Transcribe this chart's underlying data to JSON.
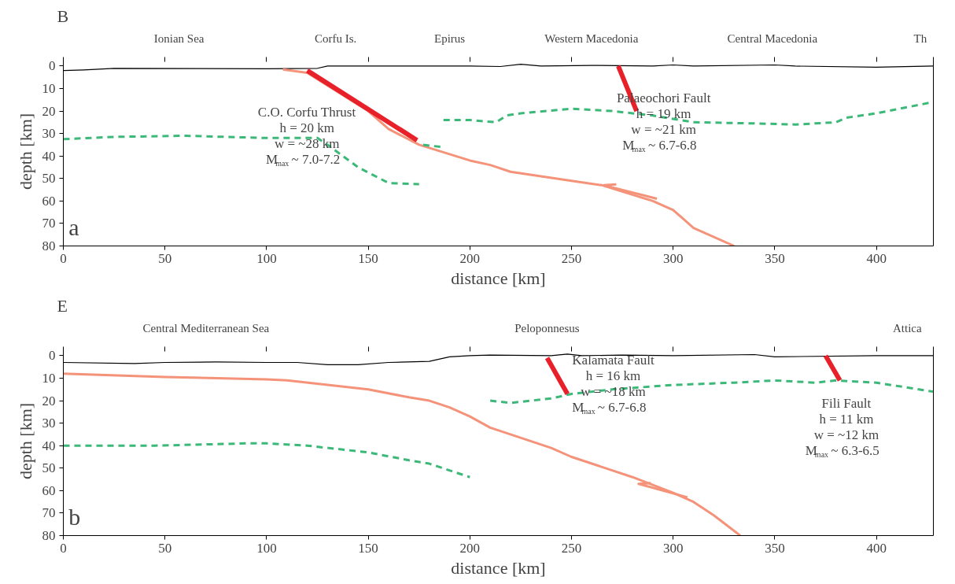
{
  "chart_data": [
    {
      "type": "line",
      "title": "B",
      "annotations": [
        "a",
        "Ionian Sea",
        "Corfu Is.",
        "Epirus",
        "Western Macedonia",
        "Central Macedonia",
        "Th",
        "C.O. Corfu Thrust\nh = 20 km\nw = ~28 km\nM$_{max}$ ~ 7.0-7.2",
        "Palaeochori Fault\nh = 19 km\nw = ~21 km\nM$_{max}$ ~ 6.7-6.8"
      ],
      "xlabel": "distance [km]",
      "ylabel": "depth [km]",
      "xlim": [
        0,
        428
      ],
      "ylim": [
        80,
        -4
      ],
      "xticks": [
        0,
        50,
        100,
        150,
        200,
        250,
        300,
        350,
        400
      ],
      "yticks": [
        0,
        10,
        20,
        30,
        40,
        50,
        60,
        70,
        80
      ],
      "grid": false,
      "series": [
        {
          "color": "#000000",
          "x": [
            0,
            10,
            25,
            100,
            125,
            130,
            200,
            215,
            225,
            235,
            260,
            290,
            300,
            310,
            350,
            360,
            400,
            428
          ],
          "values": [
            2,
            1.7,
            1,
            1.2,
            1,
            0,
            0,
            0.2,
            -0.8,
            0,
            -0.3,
            0,
            -0.5,
            0,
            -0.5,
            0,
            0.5,
            0
          ]
        },
        {
          "color": "#f4937a",
          "x": [
            108,
            120,
            150,
            160,
            175,
            200,
            210,
            220,
            250,
            265,
            290,
            300,
            305,
            310,
            330
          ],
          "values": [
            1.5,
            3,
            20,
            28,
            35,
            42,
            44,
            47,
            51,
            53,
            60,
            64,
            68,
            72,
            80
          ]
        },
        {
          "color": "#3cb878",
          "line_style": "dashed",
          "x": [
            0,
            25,
            60,
            100,
            125,
            130,
            145,
            160,
            175
          ],
          "values": [
            32.5,
            31.5,
            31,
            32,
            32,
            35,
            45,
            52,
            52.5
          ]
        },
        {
          "color": "#3cb878",
          "line_style": "dashed",
          "x": [
            177,
            186
          ],
          "values": [
            35,
            36
          ]
        },
        {
          "color": "#3cb878",
          "line_style": "dashed",
          "x": [
            187,
            200,
            213,
            218,
            225,
            250,
            270,
            290,
            310,
            340,
            360,
            380,
            385,
            400,
            428
          ],
          "values": [
            24,
            24,
            25,
            22,
            21,
            19,
            20,
            22,
            25,
            25.5,
            26,
            25,
            23,
            21,
            16
          ]
        },
        {
          "color": "#f4937a",
          "x": [
            292,
            266,
            272
          ],
          "values": [
            59,
            53,
            52.6
          ]
        },
        {
          "color": "#e8202a",
          "x": [
            120,
            174
          ],
          "values": [
            2,
            33
          ]
        },
        {
          "color": "#e8202a",
          "x": [
            273,
            282
          ],
          "values": [
            0,
            20
          ]
        }
      ]
    },
    {
      "type": "line",
      "title": "E",
      "annotations": [
        "b",
        "Central Mediterranean Sea",
        "Peloponnesus",
        "Attica",
        "Kalamata Fault\nh = 16 km\nw = ~18 km\nM$_{max}$ ~ 6.7-6.8",
        "Fili Fault\nh = 11 km\nw = ~12 km\nM$_{max}$ ~ 6.3-6.5"
      ],
      "xlabel": "distance [km]",
      "ylabel": "depth [km]",
      "xlim": [
        0,
        428
      ],
      "ylim": [
        80,
        -4
      ],
      "xticks": [
        0,
        50,
        100,
        150,
        200,
        250,
        300,
        350,
        400
      ],
      "yticks": [
        0,
        10,
        20,
        30,
        40,
        50,
        60,
        70,
        80
      ],
      "grid": false,
      "series": [
        {
          "color": "#000000",
          "x": [
            0,
            35,
            50,
            75,
            100,
            115,
            130,
            145,
            160,
            180,
            190,
            200,
            210,
            240,
            248,
            255,
            275,
            300,
            340,
            350,
            400,
            428
          ],
          "values": [
            3,
            3.5,
            3,
            2.8,
            3,
            3,
            4,
            4,
            3,
            2.5,
            0.5,
            0,
            -0.3,
            0,
            -0.7,
            0,
            -0.3,
            0,
            -0.5,
            0.5,
            0,
            0
          ]
        },
        {
          "color": "#f4937a",
          "x": [
            0,
            50,
            100,
            110,
            130,
            150,
            170,
            180,
            190,
            200,
            210,
            215,
            240,
            250,
            255,
            280,
            300,
            310,
            320,
            333
          ],
          "values": [
            8,
            9.5,
            10.5,
            11,
            13,
            15,
            18.5,
            20,
            23,
            27,
            32,
            33.5,
            41,
            45,
            46.5,
            54,
            61,
            65,
            71,
            80
          ]
        },
        {
          "color": "#3cb878",
          "line_style": "dashed",
          "x": [
            0,
            45,
            90,
            100,
            120,
            150,
            170,
            180,
            200
          ],
          "values": [
            40,
            40,
            39,
            39,
            40,
            43,
            46.5,
            48,
            54
          ]
        },
        {
          "color": "#3cb878",
          "line_style": "dashed",
          "x": [
            210,
            220,
            240,
            250,
            270,
            300,
            330,
            350,
            370,
            380,
            400,
            428
          ],
          "values": [
            20,
            21,
            19,
            17,
            15,
            13,
            12,
            11,
            12,
            11,
            12,
            16
          ]
        },
        {
          "color": "#f4937a",
          "x": [
            307,
            283,
            289
          ],
          "values": [
            63,
            57,
            56.6
          ]
        },
        {
          "color": "#e8202a",
          "x": [
            238,
            248
          ],
          "values": [
            1,
            17
          ]
        },
        {
          "color": "#e8202a",
          "x": [
            375,
            382
          ],
          "values": [
            0,
            11
          ]
        }
      ]
    }
  ]
}
